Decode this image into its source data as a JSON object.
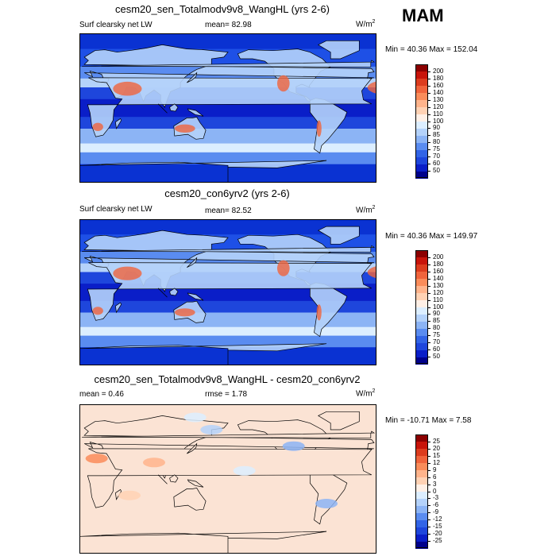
{
  "season": "MAM",
  "panels": [
    {
      "title": "cesm20_sen_Totalmodv9v8_WangHL (yrs 2-6)",
      "left_label": "Surf clearsky net LW",
      "mean_text": "mean=  82.98",
      "unit_base": "W/m",
      "unit_exp": "2",
      "minmax": "Min =  40.36 Max = 152.04"
    },
    {
      "title": "cesm20_con6yrv2 (yrs 2-6)",
      "left_label": "Surf clearsky net LW",
      "mean_text": "mean=  82.52",
      "unit_base": "W/m",
      "unit_exp": "2",
      "minmax": "Min =  40.36 Max = 149.97"
    },
    {
      "title": "cesm20_sen_Totalmodv9v8_WangHL - cesm20_con6yrv2",
      "left_label": "mean =   0.46",
      "mean_text": "rmse =   1.78",
      "unit_base": "W/m",
      "unit_exp": "2",
      "minmax": "Min = -10.71 Max =   7.58"
    }
  ],
  "chart_data": [
    {
      "type": "heatmap",
      "title": "cesm20_sen_Totalmodv9v8_WangHL (yrs 2-6)",
      "variable": "Surf clearsky net LW",
      "units": "W/m2",
      "mean": 82.98,
      "min": 40.36,
      "max": 152.04,
      "colorbar": {
        "levels": [
          50,
          60,
          70,
          75,
          80,
          85,
          90,
          100,
          110,
          120,
          130,
          140,
          160,
          180,
          200
        ],
        "colors": [
          "#00008c",
          "#0a1ec8",
          "#1e46dc",
          "#3264e6",
          "#5a8cf0",
          "#8cb4f5",
          "#b4d2fa",
          "#dceeff",
          "#fff0e6",
          "#ffd2b4",
          "#ffb48c",
          "#fa8c5a",
          "#f0643c",
          "#dc3c1e",
          "#c8140a",
          "#8c0000"
        ]
      }
    },
    {
      "type": "heatmap",
      "title": "cesm20_con6yrv2 (yrs 2-6)",
      "variable": "Surf clearsky net LW",
      "units": "W/m2",
      "mean": 82.52,
      "min": 40.36,
      "max": 149.97,
      "colorbar": {
        "levels": [
          50,
          60,
          70,
          75,
          80,
          85,
          90,
          100,
          110,
          120,
          130,
          140,
          160,
          180,
          200
        ],
        "colors": [
          "#00008c",
          "#0a1ec8",
          "#1e46dc",
          "#3264e6",
          "#5a8cf0",
          "#8cb4f5",
          "#b4d2fa",
          "#dceeff",
          "#fff0e6",
          "#ffd2b4",
          "#ffb48c",
          "#fa8c5a",
          "#f0643c",
          "#dc3c1e",
          "#c8140a",
          "#8c0000"
        ]
      }
    },
    {
      "type": "heatmap",
      "title": "cesm20_sen_Totalmodv9v8_WangHL - cesm20_con6yrv2",
      "units": "W/m2",
      "mean": 0.46,
      "rmse": 1.78,
      "min": -10.71,
      "max": 7.58,
      "colorbar": {
        "levels": [
          -25,
          -20,
          -15,
          -12,
          -9,
          -6,
          -3,
          0,
          3,
          6,
          9,
          12,
          15,
          20,
          25
        ],
        "colors": [
          "#00008c",
          "#0a1ec8",
          "#1e46dc",
          "#3264e6",
          "#5a8cf0",
          "#8cb4f5",
          "#b4d2fa",
          "#dceeff",
          "#fff0e6",
          "#ffd2b4",
          "#ffb48c",
          "#fa8c5a",
          "#f0643c",
          "#dc3c1e",
          "#c8140a",
          "#8c0000"
        ]
      }
    }
  ]
}
